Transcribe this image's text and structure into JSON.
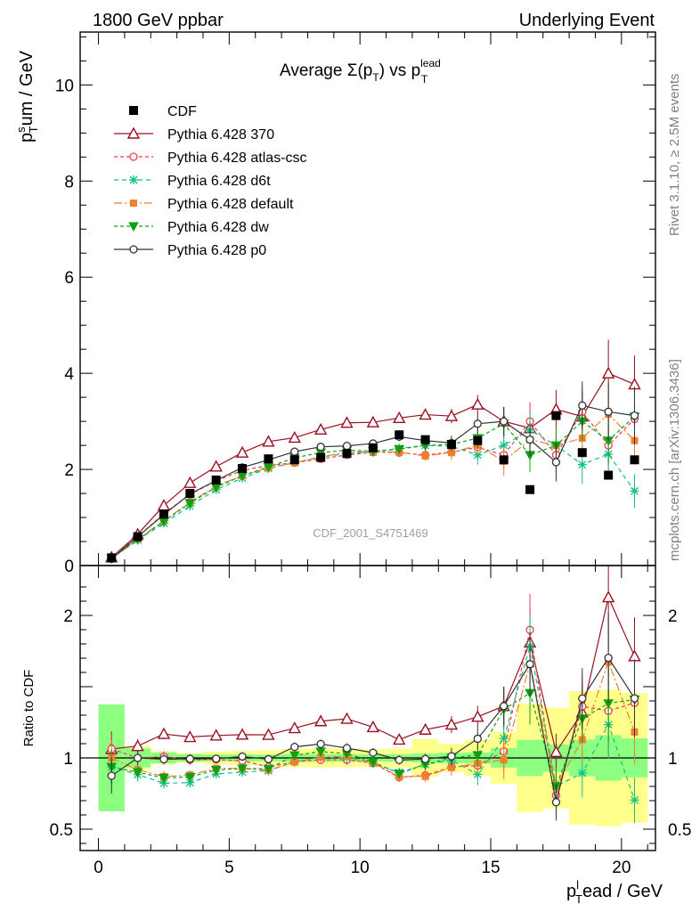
{
  "header": {
    "left": "1800 GeV ppbar",
    "right": "Underlying Event"
  },
  "side_labels": {
    "rivet": "Rivet 3.1.10, ≥ 2.5M events",
    "mcplots": "mcplots.cern.ch [arXiv:1306.3436]"
  },
  "plot": {
    "title_main": "Average Σ(p",
    "title_sub_T": "T",
    "title_mid": ") vs p",
    "title_sup": "lead",
    "title_sub2": "T",
    "watermark": "CDF_2001_S4751469",
    "ylabel_main": "p",
    "ylabel_sup": "s",
    "ylabel_sub": "T",
    "ylabel_rest": "um / GeV",
    "ratio_ylabel": "Ratio to CDF",
    "xlabel_main": "p",
    "xlabel_sup": "l",
    "xlabel_sub": "T",
    "xlabel_rest": "ead / GeV"
  },
  "chart_data": {
    "type": "line",
    "x": [
      0.5,
      1.5,
      2.5,
      3.5,
      4.5,
      5.5,
      6.5,
      7.5,
      8.5,
      9.5,
      10.5,
      11.5,
      12.5,
      13.5,
      14.5,
      15.5,
      16.5,
      17.5,
      18.5,
      19.5,
      20.5
    ],
    "xlim": [
      -0.7,
      21.3
    ],
    "ylim": [
      0,
      11.1
    ],
    "yticks": [
      "0",
      "2",
      "4",
      "6",
      "8",
      "10"
    ],
    "xticks": [
      "0",
      "5",
      "10",
      "15",
      "20"
    ],
    "ratio_ylim": [
      0.35,
      2.35
    ],
    "ratio_yticks": [
      "0.5",
      "1",
      "2"
    ],
    "reference": {
      "name": "CDF",
      "color": "#000000",
      "values": [
        0.16,
        0.6,
        1.07,
        1.5,
        1.78,
        2.02,
        2.22,
        2.2,
        2.25,
        2.33,
        2.45,
        2.72,
        2.62,
        2.52,
        2.6,
        2.2,
        1.58,
        3.12,
        2.35,
        1.88,
        2.2
      ],
      "band_inner": [
        0.06,
        0.04,
        0.04,
        0.04,
        0.04,
        0.05,
        0.05,
        0.06,
        0.06,
        0.06,
        0.06,
        0.07,
        0.08,
        0.09,
        0.1,
        0.15,
        0.2,
        0.3,
        0.3,
        0.3,
        0.3
      ],
      "band_outer": [
        0.06,
        0.05,
        0.05,
        0.05,
        0.08,
        0.1,
        0.12,
        0.14,
        0.15,
        0.15,
        0.15,
        0.18,
        0.35,
        0.25,
        0.33,
        0.4,
        0.6,
        1.1,
        1.1,
        0.9,
        1.0
      ]
    },
    "series": [
      {
        "name": "Pythia 6.428 370",
        "color": "#9a0f20",
        "dash": "",
        "marker": "triangle-open",
        "values": [
          0.17,
          0.65,
          1.25,
          1.72,
          2.06,
          2.35,
          2.58,
          2.66,
          2.83,
          2.97,
          2.98,
          3.07,
          3.14,
          3.11,
          3.35,
          3.0,
          2.86,
          3.25,
          3.1,
          4.0,
          3.77
        ],
        "err": [
          0.02,
          0.03,
          0.04,
          0.05,
          0.05,
          0.06,
          0.06,
          0.07,
          0.07,
          0.08,
          0.08,
          0.09,
          0.1,
          0.15,
          0.2,
          0.3,
          0.4,
          0.4,
          0.5,
          0.7,
          0.6
        ]
      },
      {
        "name": "Pythia 6.428 atlas-csc",
        "color": "#ef3b4e",
        "dash": "4,3",
        "marker": "circle-open",
        "values": [
          0.17,
          0.6,
          1.08,
          1.48,
          1.76,
          1.98,
          2.08,
          2.14,
          2.22,
          2.3,
          2.36,
          2.35,
          2.3,
          2.36,
          2.46,
          2.3,
          3.0,
          2.3,
          3.2,
          2.5,
          3.05
        ],
        "err": [
          0.02,
          0.03,
          0.04,
          0.05,
          0.05,
          0.06,
          0.06,
          0.07,
          0.07,
          0.08,
          0.08,
          0.09,
          0.1,
          0.15,
          0.2,
          0.3,
          0.4,
          0.4,
          0.5,
          0.6,
          0.6
        ]
      },
      {
        "name": "Pythia 6.428 d6t",
        "color": "#11bf86",
        "dash": "5,4",
        "marker": "asterisk",
        "values": [
          0.15,
          0.53,
          0.88,
          1.24,
          1.58,
          1.82,
          2.02,
          2.14,
          2.26,
          2.33,
          2.36,
          2.44,
          2.5,
          2.48,
          2.3,
          2.5,
          2.82,
          2.5,
          2.1,
          2.32,
          1.55
        ],
        "err": [
          0.02,
          0.03,
          0.04,
          0.05,
          0.05,
          0.06,
          0.06,
          0.07,
          0.07,
          0.08,
          0.08,
          0.09,
          0.1,
          0.15,
          0.2,
          0.3,
          0.35,
          0.4,
          0.4,
          0.45,
          0.35
        ]
      },
      {
        "name": "Pythia 6.428 default",
        "color": "#f07f2e",
        "dash": "9,3,2,3",
        "marker": "square",
        "values": [
          0.16,
          0.55,
          0.93,
          1.32,
          1.65,
          1.87,
          2.03,
          2.14,
          2.26,
          2.36,
          2.37,
          2.36,
          2.28,
          2.35,
          2.5,
          2.17,
          2.62,
          2.5,
          2.65,
          3.15,
          2.6
        ],
        "err": [
          0.02,
          0.03,
          0.04,
          0.05,
          0.05,
          0.06,
          0.06,
          0.07,
          0.07,
          0.08,
          0.08,
          0.09,
          0.1,
          0.15,
          0.2,
          0.3,
          0.35,
          0.4,
          0.4,
          0.5,
          0.5
        ]
      },
      {
        "name": "Pythia 6.428 dw",
        "color": "#10a010",
        "dash": "4,3",
        "marker": "triangle-down",
        "values": [
          0.15,
          0.54,
          0.92,
          1.3,
          1.63,
          1.87,
          2.05,
          2.24,
          2.35,
          2.4,
          2.38,
          2.42,
          2.5,
          2.52,
          2.65,
          2.95,
          2.3,
          2.5,
          3.0,
          2.6,
          3.1
        ],
        "err": [
          0.02,
          0.03,
          0.04,
          0.05,
          0.05,
          0.06,
          0.06,
          0.07,
          0.07,
          0.08,
          0.08,
          0.09,
          0.1,
          0.15,
          0.2,
          0.3,
          0.35,
          0.4,
          0.4,
          0.5,
          0.5
        ]
      },
      {
        "name": "Pythia 6.428 p0",
        "color": "#333333",
        "dash": "",
        "marker": "circle-open",
        "values": [
          0.14,
          0.6,
          1.06,
          1.49,
          1.77,
          2.04,
          2.2,
          2.37,
          2.47,
          2.49,
          2.54,
          2.68,
          2.6,
          2.55,
          2.95,
          3.0,
          2.62,
          2.15,
          3.33,
          3.2,
          3.12
        ],
        "err": [
          0.02,
          0.03,
          0.04,
          0.05,
          0.05,
          0.06,
          0.06,
          0.07,
          0.07,
          0.08,
          0.08,
          0.09,
          0.1,
          0.15,
          0.2,
          0.3,
          0.35,
          0.4,
          0.5,
          0.6,
          0.6
        ]
      }
    ]
  }
}
